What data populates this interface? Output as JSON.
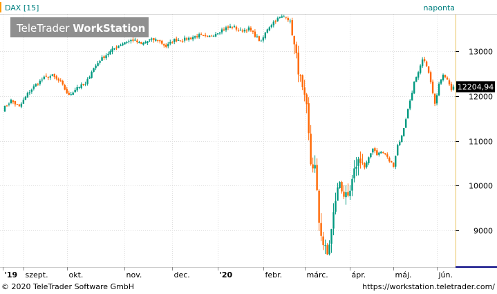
{
  "header": {
    "instrument": "DAX [15]",
    "interval": "naponta",
    "watermark_a": "TeleTrader ",
    "watermark_b": "WorkStation"
  },
  "footer": {
    "copyright": "© 2020 TeleTrader Software GmbH",
    "url": "https://workstation.teletrader.com/"
  },
  "colors": {
    "up": "#009980",
    "down": "#ff6600",
    "accent": "#ff9900",
    "text_teal": "#008080",
    "border_right": "#e8c25c",
    "bottom_line": "#000080",
    "grid": "#e0e0e0"
  },
  "chart_data": {
    "type": "candlestick",
    "last_price_label": "12204,94",
    "last_price": 12204.94,
    "ylim": [
      8200,
      13800
    ],
    "y_ticks": [
      {
        "value": 9000,
        "label": "9000"
      },
      {
        "value": 10000,
        "label": "10000"
      },
      {
        "value": 11000,
        "label": "11000"
      },
      {
        "value": 12000,
        "label": "12000"
      },
      {
        "value": 13000,
        "label": "13000"
      }
    ],
    "x_labels": [
      {
        "label": "'19",
        "day": 0,
        "bold": true
      },
      {
        "label": "szept.",
        "day": 10,
        "bold": false
      },
      {
        "label": "okt.",
        "day": 31,
        "bold": false
      },
      {
        "label": "nov.",
        "day": 59,
        "bold": false
      },
      {
        "label": "dec.",
        "day": 82,
        "bold": false
      },
      {
        "label": "'20",
        "day": 104,
        "bold": true
      },
      {
        "label": "febr.",
        "day": 126,
        "bold": false
      },
      {
        "label": "márc.",
        "day": 146,
        "bold": false
      },
      {
        "label": "ápr.",
        "day": 168,
        "bold": false
      },
      {
        "label": "máj.",
        "day": 189,
        "bold": false
      },
      {
        "label": "jún.",
        "day": 210,
        "bold": false
      }
    ],
    "anchors": [
      [
        0,
        11700
      ],
      [
        4,
        11900
      ],
      [
        8,
        11750
      ],
      [
        12,
        12050
      ],
      [
        16,
        12250
      ],
      [
        20,
        12400
      ],
      [
        24,
        12450
      ],
      [
        28,
        12300
      ],
      [
        32,
        12000
      ],
      [
        36,
        12200
      ],
      [
        40,
        12250
      ],
      [
        43,
        12550
      ],
      [
        47,
        12800
      ],
      [
        51,
        12950
      ],
      [
        55,
        13100
      ],
      [
        59,
        13200
      ],
      [
        63,
        13250
      ],
      [
        67,
        13150
      ],
      [
        71,
        13250
      ],
      [
        75,
        13250
      ],
      [
        79,
        13100
      ],
      [
        83,
        13250
      ],
      [
        87,
        13250
      ],
      [
        91,
        13300
      ],
      [
        95,
        13350
      ],
      [
        99,
        13300
      ],
      [
        103,
        13400
      ],
      [
        107,
        13500
      ],
      [
        111,
        13550
      ],
      [
        115,
        13450
      ],
      [
        119,
        13500
      ],
      [
        122,
        13350
      ],
      [
        125,
        13200
      ],
      [
        128,
        13500
      ],
      [
        131,
        13650
      ],
      [
        134,
        13750
      ],
      [
        137,
        13780
      ],
      [
        139,
        13650
      ],
      [
        141,
        13100
      ],
      [
        143,
        12600
      ],
      [
        145,
        12100
      ],
      [
        147,
        11700
      ],
      [
        149,
        10500
      ],
      [
        151,
        10400
      ],
      [
        153,
        9200
      ],
      [
        155,
        8700
      ],
      [
        157,
        8450
      ],
      [
        159,
        9000
      ],
      [
        161,
        9700
      ],
      [
        163,
        10100
      ],
      [
        165,
        9800
      ],
      [
        167,
        9650
      ],
      [
        169,
        10050
      ],
      [
        171,
        10500
      ],
      [
        173,
        10600
      ],
      [
        175,
        10400
      ],
      [
        177,
        10600
      ],
      [
        179,
        10850
      ],
      [
        181,
        10700
      ],
      [
        183,
        10750
      ],
      [
        185,
        10700
      ],
      [
        187,
        10550
      ],
      [
        189,
        10450
      ],
      [
        191,
        10900
      ],
      [
        193,
        11100
      ],
      [
        195,
        11500
      ],
      [
        197,
        11900
      ],
      [
        199,
        12300
      ],
      [
        201,
        12500
      ],
      [
        203,
        12800
      ],
      [
        205,
        12700
      ],
      [
        207,
        12300
      ],
      [
        209,
        11800
      ],
      [
        211,
        12300
      ],
      [
        213,
        12500
      ],
      [
        215,
        12400
      ],
      [
        217,
        12100
      ],
      [
        218,
        12204.94
      ]
    ]
  }
}
